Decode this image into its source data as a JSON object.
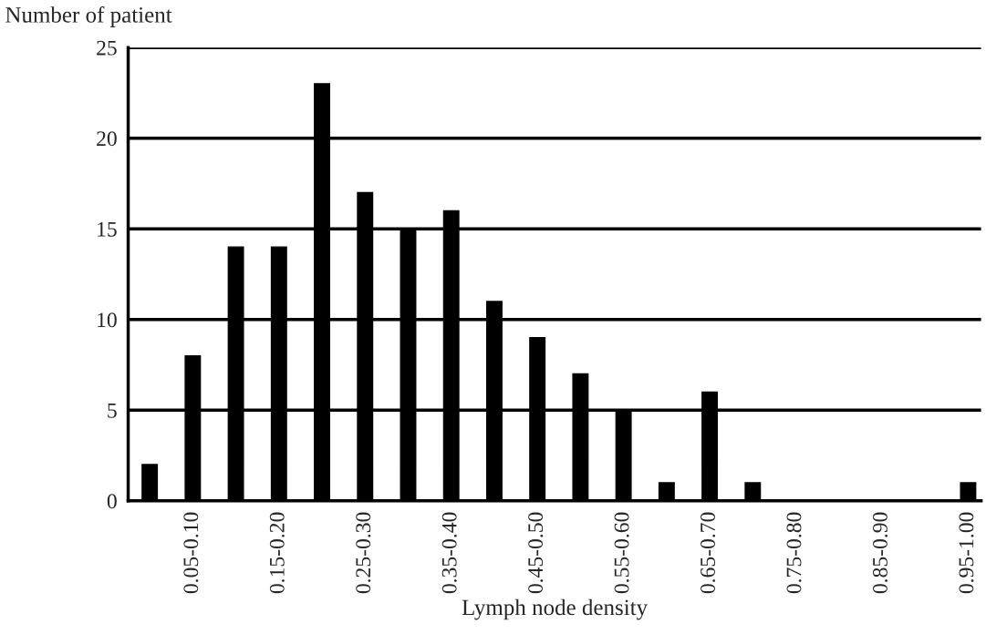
{
  "chart_data": {
    "type": "bar",
    "xlabel": "Lymph node density",
    "ylabel": "Number of patient",
    "categories": [
      null,
      "0.05-0.10",
      null,
      "0.15-0.20",
      null,
      "0.25-0.30",
      null,
      "0.35-0.40",
      null,
      "0.45-0.50",
      null,
      "0.55-0.60",
      null,
      "0.65-0.70",
      null,
      "0.75-0.80",
      null,
      "0.85-0.90",
      null,
      "0.95-1.00"
    ],
    "values": [
      2,
      8,
      14,
      14,
      23,
      17,
      15,
      16,
      11,
      9,
      7,
      5,
      1,
      6,
      1,
      0,
      0,
      0,
      0,
      1
    ],
    "color": "#000000",
    "ylim": [
      0,
      25
    ],
    "yticks": [
      0,
      5,
      10,
      15,
      20,
      25
    ],
    "grid": "y",
    "legend": false
  }
}
